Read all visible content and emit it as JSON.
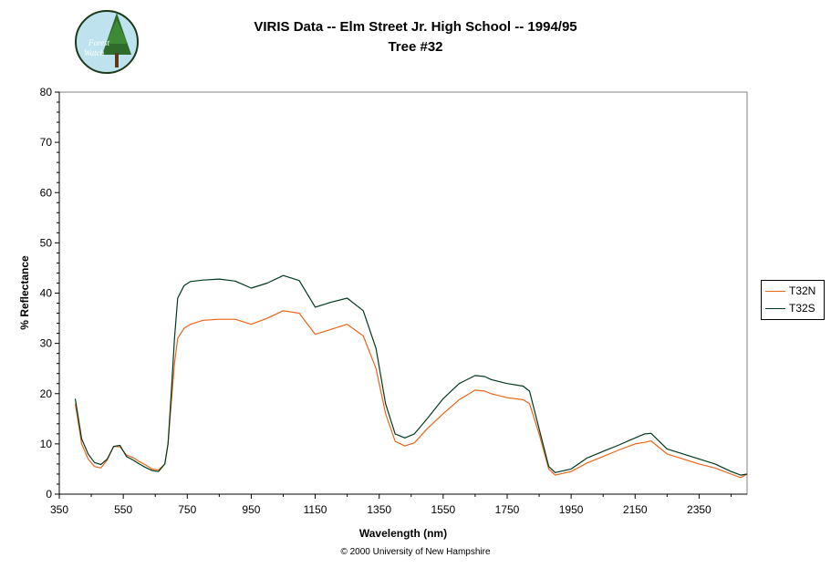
{
  "chart_data": {
    "type": "line",
    "title": "VIRIS Data -- Elm Street Jr. High School -- 1994/95",
    "subtitle": "Tree #32",
    "xlabel": "Wavelength (nm)",
    "ylabel": "% Reflectance",
    "xlim": [
      350,
      2500
    ],
    "ylim": [
      0,
      80
    ],
    "xticks": [
      350,
      550,
      750,
      950,
      1150,
      1350,
      1550,
      1750,
      1950,
      2150,
      2350
    ],
    "yticks": [
      0,
      10,
      20,
      30,
      40,
      50,
      60,
      70,
      80
    ],
    "grid": false,
    "legend": "right",
    "series": [
      {
        "name": "T32N",
        "color": "#e8651a",
        "x": [
          400,
          420,
          440,
          460,
          480,
          500,
          520,
          540,
          560,
          580,
          600,
          620,
          640,
          660,
          680,
          690,
          700,
          710,
          720,
          740,
          760,
          800,
          850,
          900,
          950,
          1000,
          1050,
          1100,
          1150,
          1200,
          1250,
          1300,
          1340,
          1370,
          1400,
          1430,
          1460,
          1500,
          1550,
          1600,
          1650,
          1680,
          1700,
          1750,
          1800,
          1820,
          1850,
          1880,
          1900,
          1950,
          2000,
          2050,
          2100,
          2150,
          2180,
          2200,
          2250,
          2300,
          2350,
          2400,
          2450,
          2480,
          2500
        ],
        "y": [
          18,
          10,
          7,
          5.5,
          5.2,
          6.8,
          9.5,
          9.4,
          7.8,
          7.3,
          6.5,
          5.8,
          5,
          4.8,
          6,
          10,
          18,
          26,
          31,
          33,
          33.8,
          34.6,
          34.8,
          34.8,
          33.8,
          35,
          36.5,
          36,
          31.8,
          32.8,
          33.8,
          31.5,
          25,
          16,
          10.5,
          9.6,
          10.2,
          13,
          16,
          18.8,
          20.7,
          20.5,
          20,
          19.2,
          18.8,
          18,
          12,
          5,
          3.8,
          4.5,
          6.2,
          7.5,
          8.8,
          10,
          10.3,
          10.6,
          8,
          7,
          6,
          5.2,
          4,
          3.3,
          4
        ]
      },
      {
        "name": "T32S",
        "color": "#003a1e",
        "x": [
          400,
          420,
          440,
          460,
          480,
          500,
          520,
          540,
          560,
          580,
          600,
          620,
          640,
          660,
          680,
          690,
          700,
          710,
          720,
          740,
          760,
          800,
          850,
          900,
          950,
          1000,
          1050,
          1100,
          1150,
          1200,
          1250,
          1300,
          1340,
          1370,
          1400,
          1430,
          1460,
          1500,
          1550,
          1600,
          1650,
          1680,
          1700,
          1750,
          1800,
          1820,
          1850,
          1880,
          1900,
          1950,
          2000,
          2050,
          2100,
          2150,
          2180,
          2200,
          2250,
          2300,
          2350,
          2400,
          2450,
          2480,
          2500
        ],
        "y": [
          19,
          11,
          8,
          6.3,
          5.9,
          7,
          9.5,
          9.7,
          7.5,
          6.8,
          6,
          5.3,
          4.7,
          4.5,
          6,
          10,
          20,
          31,
          39,
          41.5,
          42.3,
          42.6,
          42.8,
          42.4,
          41,
          42,
          43.5,
          42.5,
          37.2,
          38.2,
          39,
          36.5,
          29,
          18,
          12,
          11.2,
          12,
          15,
          19,
          22,
          23.6,
          23.4,
          22.8,
          22,
          21.5,
          20.5,
          13,
          5.5,
          4.3,
          5,
          7.2,
          8.5,
          9.8,
          11.2,
          12,
          12.1,
          9,
          8,
          7,
          6,
          4.5,
          3.8,
          4
        ]
      }
    ]
  },
  "footer": "© 2000 University of New Hampshire",
  "logo": {
    "line1": "Forest",
    "line2": "Watch"
  }
}
